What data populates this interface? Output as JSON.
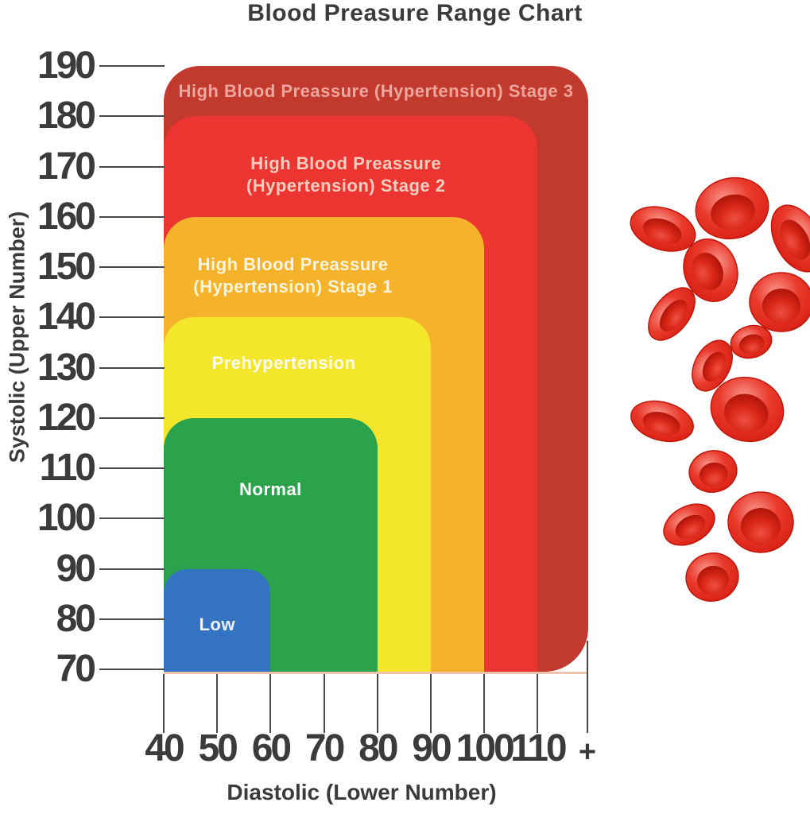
{
  "chart_data": {
    "type": "area",
    "title": "Blood Preasure Range Chart",
    "xlabel": "Diastolic (Lower Number)",
    "ylabel": "Systolic (Upper Number)",
    "x_ticks": [
      "40",
      "50",
      "60",
      "70",
      "80",
      "90",
      "100",
      "110",
      "+"
    ],
    "y_ticks": [
      "190",
      "180",
      "170",
      "160",
      "150",
      "140",
      "130",
      "120",
      "110",
      "100",
      "90",
      "80",
      "70"
    ],
    "xlim": [
      40,
      115
    ],
    "ylim": [
      70,
      190
    ],
    "grid": false,
    "legend": "labels drawn inside nested ranges",
    "ranges": [
      {
        "id": "hypertension-stage-3",
        "label": "High Blood Preassure (Hypertension) Stage 3",
        "label_lines": [
          "High Blood Preassure (Hypertension) Stage 3"
        ],
        "systolic": [
          70,
          190
        ],
        "diastolic": [
          40,
          "110+"
        ],
        "plus": true,
        "color": "#c2392e",
        "label_color": "#efa69c"
      },
      {
        "id": "hypertension-stage-2",
        "label": "High Blood Preassure (Hypertension) Stage 2",
        "label_lines": [
          "High Blood Preassure",
          "(Hypertension) Stage 2"
        ],
        "systolic": [
          70,
          180
        ],
        "diastolic": [
          40,
          110
        ],
        "plus": false,
        "color": "#ec3430",
        "label_color": "#f6cfc0"
      },
      {
        "id": "hypertension-stage-1",
        "label": "High Blood Preassure (Hypertension) Stage 1",
        "label_lines": [
          "High Blood Preassure",
          "(Hypertension) Stage 1"
        ],
        "systolic": [
          70,
          160
        ],
        "diastolic": [
          40,
          100
        ],
        "plus": false,
        "color": "#f4b32b",
        "label_color": "#fdf4dd"
      },
      {
        "id": "prehypertension",
        "label": "Prehypertension",
        "label_lines": [
          "Prehypertension"
        ],
        "systolic": [
          70,
          140
        ],
        "diastolic": [
          40,
          90
        ],
        "plus": false,
        "color": "#f4e72b",
        "label_color": "#fcfcf0"
      },
      {
        "id": "normal",
        "label": "Normal",
        "label_lines": [
          "Normal"
        ],
        "systolic": [
          70,
          120
        ],
        "diastolic": [
          40,
          80
        ],
        "plus": false,
        "color": "#2ba34d",
        "label_color": "#ffffff"
      },
      {
        "id": "low",
        "label": "Low",
        "label_lines": [
          "Low"
        ],
        "systolic": [
          70,
          90
        ],
        "diastolic": [
          40,
          60
        ],
        "plus": false,
        "color": "#3373c2",
        "label_color": "#eef3fb"
      }
    ]
  },
  "illustration": {
    "name": "red-blood-cells"
  },
  "colors": {
    "text": "#3b3b3b",
    "tick": "#4a4a4a",
    "baseline": "#eec3ae",
    "background": "#ffffff"
  }
}
